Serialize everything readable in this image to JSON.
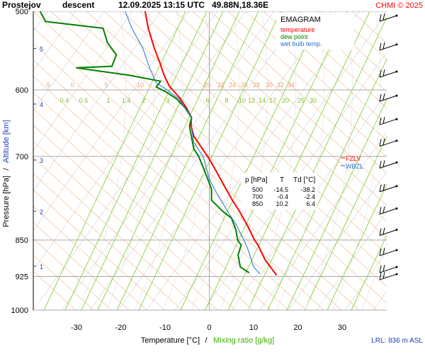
{
  "header": {
    "station": "Prostejov",
    "mode": "descent",
    "datetime": "12.09.2025 13:15 UTC",
    "coords": "49.88N,18.36E",
    "copyright": "CHMI © 2025"
  },
  "legend": {
    "title": "EMAGRAM",
    "items": [
      {
        "label": "temperature",
        "color": "#ff0000"
      },
      {
        "label": "dew point",
        "color": "#008000"
      },
      {
        "label": "wet bulb temp.",
        "color": "#1f6fd1"
      }
    ]
  },
  "table": {
    "headers": [
      "p [hPa]",
      "T",
      "Td [°C]"
    ],
    "rows": [
      [
        "500",
        "-14.5",
        "-38.2"
      ],
      [
        "700",
        "-0.4",
        "-2.4"
      ],
      [
        "850",
        "10.2",
        "6.4"
      ]
    ]
  },
  "fzlv_label": "FZLV",
  "wbzl_label": "WBZL",
  "lrl_label": "LRL: 836 m ASL",
  "chart_data": {
    "type": "line",
    "xlabel": "Temperature [°C]",
    "xlabel_sep": "/",
    "xlabel2": "Mixing ratio [g/kg]",
    "ylabel": "Pressure [hPa]",
    "ylabel_sep": "/",
    "ylabel2": "Altitude [km]",
    "xlim": [
      -40,
      40
    ],
    "ylim": [
      1000,
      500
    ],
    "y_scale": "log",
    "x_ticks": [
      -30,
      -20,
      -10,
      0,
      10,
      20,
      30
    ],
    "y_ticks": [
      500,
      600,
      700,
      850,
      925,
      1000
    ],
    "altitude_ticks": [
      {
        "label": "1",
        "p": 903
      },
      {
        "label": "2",
        "p": 795
      },
      {
        "label": "3",
        "p": 706
      },
      {
        "label": "4",
        "p": 620
      },
      {
        "label": "5",
        "p": 545
      }
    ],
    "mixing_ratio_labels": [
      "0.4",
      "0.6",
      "1",
      "1.4",
      "2",
      "3",
      "6",
      "8",
      "10",
      "12",
      "14",
      "17",
      "20",
      "25",
      "30"
    ],
    "dry_adiabat_labels": [
      "-5",
      "0",
      "5",
      "10",
      "20",
      "22",
      "24",
      "26",
      "28",
      "30",
      "32",
      "34"
    ],
    "series": [
      {
        "name": "temperature",
        "color": "#ff0000",
        "points": [
          [
            15.2,
            922
          ],
          [
            14.6,
            915
          ],
          [
            12.6,
            890
          ],
          [
            11.0,
            860
          ],
          [
            10.2,
            850
          ],
          [
            8.8,
            825
          ],
          [
            6.8,
            795
          ],
          [
            5.2,
            775
          ],
          [
            3.4,
            750
          ],
          [
            1.6,
            725
          ],
          [
            0.6,
            712
          ],
          [
            -0.4,
            700
          ],
          [
            -2.0,
            683
          ],
          [
            -3.5,
            668
          ],
          [
            -4.2,
            650
          ],
          [
            -4.0,
            640
          ],
          [
            -5.2,
            625
          ],
          [
            -6.6,
            612
          ],
          [
            -8.0,
            602
          ],
          [
            -9.0,
            595
          ],
          [
            -10.0,
            583
          ],
          [
            -10.5,
            575
          ],
          [
            -11.2,
            563
          ],
          [
            -12.4,
            545
          ],
          [
            -13.8,
            520
          ],
          [
            -14.5,
            500
          ]
        ]
      },
      {
        "name": "dew point",
        "color": "#008000",
        "points": [
          [
            9.0,
            917
          ],
          [
            7.0,
            905
          ],
          [
            6.5,
            880
          ],
          [
            7.2,
            860
          ],
          [
            6.4,
            850
          ],
          [
            6.0,
            830
          ],
          [
            5.0,
            808
          ],
          [
            3.0,
            795
          ],
          [
            0.5,
            775
          ],
          [
            0.5,
            755
          ],
          [
            -0.5,
            735
          ],
          [
            -1.4,
            718
          ],
          [
            -2.4,
            700
          ],
          [
            -3.5,
            688
          ],
          [
            -4.0,
            670
          ],
          [
            -4.5,
            652
          ],
          [
            -4.0,
            640
          ],
          [
            -5.5,
            625
          ],
          [
            -7.5,
            612
          ],
          [
            -10.0,
            602
          ],
          [
            -12.0,
            596
          ],
          [
            -11.0,
            588
          ],
          [
            -18.0,
            580
          ],
          [
            -30.0,
            570
          ],
          [
            -22.0,
            568
          ],
          [
            -21.0,
            553
          ],
          [
            -23.0,
            538
          ],
          [
            -24.0,
            520
          ],
          [
            -37.0,
            512
          ],
          [
            -38.2,
            500
          ]
        ]
      },
      {
        "name": "wet bulb temp.",
        "color": "#1f6fd1",
        "points": [
          [
            11.5,
            920
          ],
          [
            10.0,
            905
          ],
          [
            8.8,
            870
          ],
          [
            7.8,
            850
          ],
          [
            6.2,
            822
          ],
          [
            4.5,
            800
          ],
          [
            3.0,
            780
          ],
          [
            1.5,
            760
          ],
          [
            0.0,
            738
          ],
          [
            -1.4,
            700
          ],
          [
            -3.5,
            678
          ],
          [
            -4.0,
            655
          ],
          [
            -4.0,
            640
          ],
          [
            -5.5,
            625
          ],
          [
            -7.0,
            612
          ],
          [
            -9.5,
            600
          ],
          [
            -12.0,
            590
          ],
          [
            -13.5,
            570
          ],
          [
            -15.0,
            545
          ],
          [
            -17.5,
            520
          ],
          [
            -19.0,
            500
          ]
        ]
      }
    ],
    "wind_barbs_p": [
      505,
      540,
      575,
      608,
      642,
      675,
      710,
      750,
      790,
      830,
      870,
      905,
      920
    ],
    "freezing_level_p": 700,
    "grid": true
  }
}
